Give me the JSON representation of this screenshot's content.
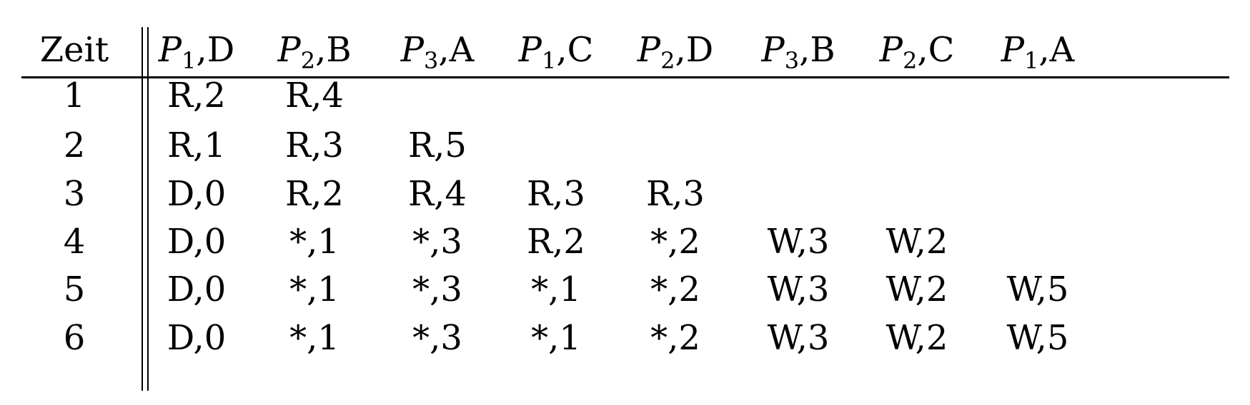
{
  "table": {
    "headers": [
      {
        "kind": "text",
        "text": "Zeit"
      },
      {
        "kind": "proc",
        "p": "P",
        "sub": "1",
        "suffix": ",D"
      },
      {
        "kind": "proc",
        "p": "P",
        "sub": "2",
        "suffix": ",B"
      },
      {
        "kind": "proc",
        "p": "P",
        "sub": "3",
        "suffix": ",A"
      },
      {
        "kind": "proc",
        "p": "P",
        "sub": "1",
        "suffix": ",C"
      },
      {
        "kind": "proc",
        "p": "P",
        "sub": "2",
        "suffix": ",D"
      },
      {
        "kind": "proc",
        "p": "P",
        "sub": "3",
        "suffix": ",B"
      },
      {
        "kind": "proc",
        "p": "P",
        "sub": "2",
        "suffix": ",C"
      },
      {
        "kind": "proc",
        "p": "P",
        "sub": "1",
        "suffix": ",A"
      }
    ],
    "rows": [
      [
        "1",
        "R,2",
        "R,4",
        "",
        "",
        "",
        "",
        "",
        ""
      ],
      [
        "2",
        "R,1",
        "R,3",
        "R,5",
        "",
        "",
        "",
        "",
        ""
      ],
      [
        "3",
        "D,0",
        "R,2",
        "R,4",
        "R,3",
        "R,3",
        "",
        "",
        ""
      ],
      [
        "4",
        "D,0",
        "*,1",
        "*,3",
        "R,2",
        "*,2",
        "W,3",
        "W,2",
        ""
      ],
      [
        "5",
        "D,0",
        "*,1",
        "*,3",
        "*,1",
        "*,2",
        "W,3",
        "W,2",
        "W,5"
      ],
      [
        "6",
        "D,0",
        "*,1",
        "*,3",
        "*,1",
        "*,2",
        "W,3",
        "W,2",
        "W,5"
      ]
    ]
  }
}
